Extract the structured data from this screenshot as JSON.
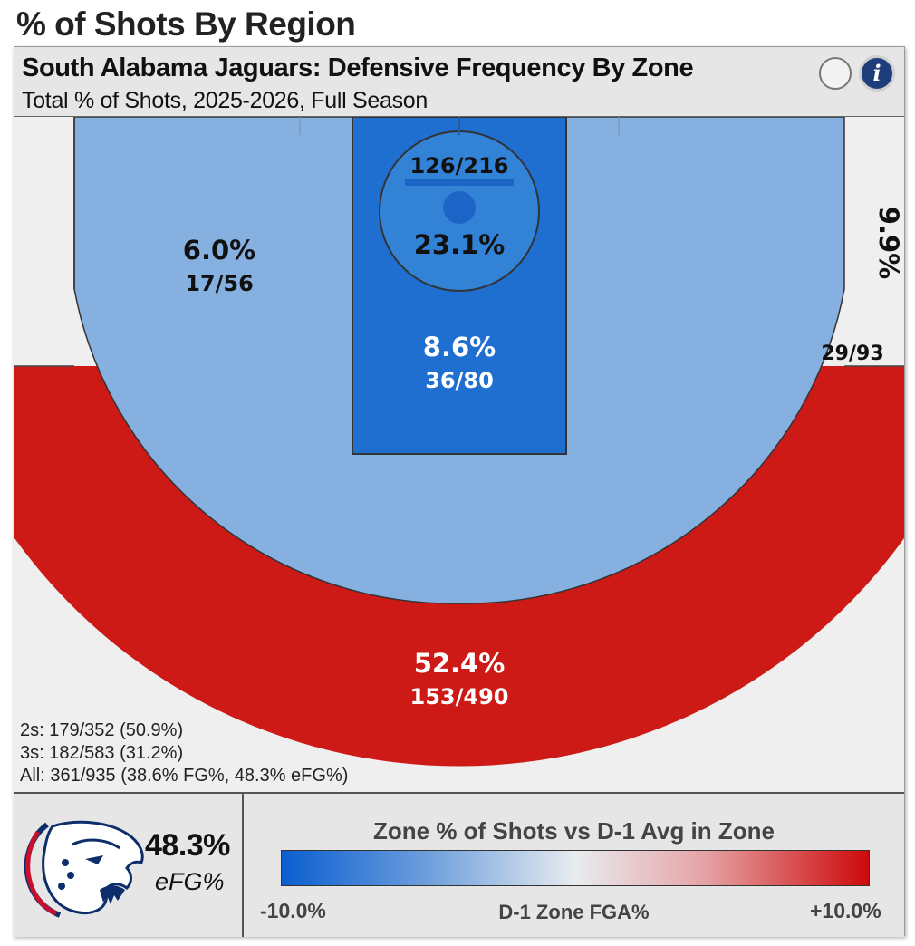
{
  "page_title": "% of Shots By Region",
  "card": {
    "title": "South Alabama Jaguars: Defensive Frequency By Zone",
    "subtitle": "Total % of Shots, 2025-2026, Full Season",
    "info_icon": "i"
  },
  "colors": {
    "above_avg": "#cd1a17",
    "slightly_below_avg": "#86b0df",
    "below_avg": "#1f6fd1",
    "no_zone": "#efefef"
  },
  "chart_data": {
    "type": "shot-chart",
    "zones": [
      {
        "zone": "Rim",
        "pct": "23.1%",
        "made_att": "126/216",
        "color": "#3282d6"
      },
      {
        "zone": "Paint (non-rim)",
        "pct": "8.6%",
        "made_att": "36/80",
        "color": "#1f6fd1"
      },
      {
        "zone": "Mid-range",
        "pct": "6.0%",
        "made_att": "17/56",
        "color": "#86b0df"
      },
      {
        "zone": "Corner 3",
        "pct": "9.9%",
        "made_att": "29/93",
        "color": "#efefef"
      },
      {
        "zone": "Above-break 3",
        "pct": "52.4%",
        "made_att": "153/490",
        "color": "#cd1a17"
      }
    ],
    "totals": {
      "twos": "2s: 179/352 (50.9%)",
      "threes": "3s: 182/583 (31.2%)",
      "all": "All: 361/935 (38.6% FG%, 48.3% eFG%)"
    },
    "legend": {
      "title": "Zone % of Shots vs D-1 Avg in Zone",
      "min": "-10.0%",
      "max": "+10.0%",
      "mid_label": "D-1 Zone FGA%",
      "min_color": "#0b5ed1",
      "mid_color": "#e8ecef",
      "max_color": "#cd0a0a"
    }
  },
  "summary": {
    "efg_value": "48.3%",
    "efg_label": "eFG%",
    "logo": "south-alabama-jaguar-logo"
  }
}
